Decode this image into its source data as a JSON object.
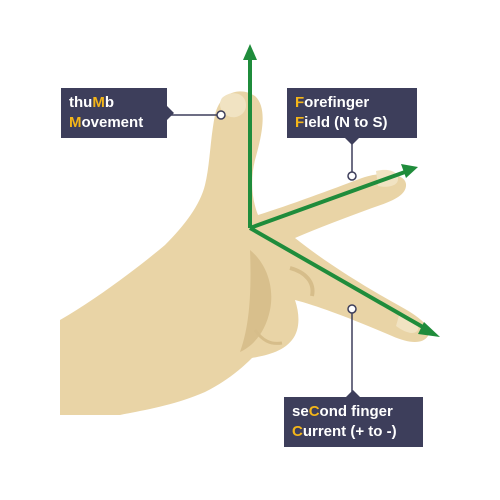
{
  "labels": {
    "thumb": {
      "line1": {
        "pre": "thu",
        "hl": "M",
        "post": "b"
      },
      "line2": {
        "pre": "",
        "hl": "M",
        "post": "ovement"
      }
    },
    "forefinger": {
      "line1": {
        "pre": "",
        "hl": "F",
        "post": "orefinger"
      },
      "line2": {
        "pre": "",
        "hl": "F",
        "post": "ield (N to S)"
      }
    },
    "second": {
      "line1": {
        "pre": "se",
        "hl": "C",
        "post": "ond finger"
      },
      "line2": {
        "pre": "",
        "hl": "C",
        "post": "urrent (+ to -)"
      }
    }
  },
  "colors": {
    "skin": "#e9d4a6",
    "skin_shadow": "#d6bd8a",
    "arrow": "#1f8c3b",
    "label_bg": "#3d3e5b",
    "label_text": "#ffffff",
    "highlight": "#f3b519"
  }
}
